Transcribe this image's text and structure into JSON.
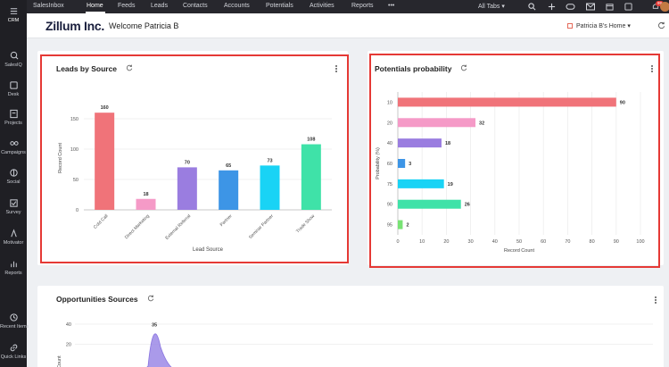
{
  "sidebar": {
    "items": [
      {
        "label": "CRM",
        "icon": "crm-icon"
      },
      {
        "label": "SalesIQ",
        "icon": "salesiq-icon"
      },
      {
        "label": "Desk",
        "icon": "desk-icon"
      },
      {
        "label": "Projects",
        "icon": "projects-icon"
      },
      {
        "label": "Campaigns",
        "icon": "campaigns-icon"
      },
      {
        "label": "Social",
        "icon": "social-icon"
      },
      {
        "label": "Survey",
        "icon": "survey-icon"
      },
      {
        "label": "Motivator",
        "icon": "motivator-icon"
      },
      {
        "label": "Reports",
        "icon": "reports-icon"
      },
      {
        "label": "Recent Items",
        "icon": "recent-items-icon"
      },
      {
        "label": "Quick Links",
        "icon": "quick-links-icon"
      }
    ]
  },
  "nav": {
    "items": [
      "SalesInbox",
      "Home",
      "Feeds",
      "Leads",
      "Contacts",
      "Accounts",
      "Potentials",
      "Activities",
      "Reports"
    ],
    "active": "Home",
    "more": "•••",
    "all_tabs": "All Tabs",
    "notification_count": "99"
  },
  "header": {
    "brand": "Zillum Inc.",
    "welcome": "Welcome Patricia B",
    "home_selector": "Patricia B's Home"
  },
  "leads_card": {
    "title": "Leads by Source",
    "chart_data": {
      "type": "bar",
      "categories": [
        "Cold Call",
        "Direct Marketing",
        "External Referral",
        "Partner",
        "Seminar Partner",
        "Trade Show"
      ],
      "values": [
        160,
        18,
        70,
        65,
        73,
        108
      ],
      "colors": [
        "#f07379",
        "#f59ac7",
        "#9a7de0",
        "#3d95e6",
        "#19d3f5",
        "#3fe2a8"
      ],
      "xlabel": "Lead Source",
      "ylabel": "Record Count",
      "ylim": [
        0,
        200
      ],
      "yticks": [
        0,
        50,
        100,
        150
      ],
      "grid": true
    }
  },
  "potentials_card": {
    "title": "Potentials probability",
    "chart_data": {
      "type": "bar",
      "orientation": "horizontal",
      "categories": [
        "10",
        "20",
        "40",
        "60",
        "75",
        "90",
        "95"
      ],
      "values": [
        90,
        32,
        18,
        3,
        19,
        26,
        2
      ],
      "colors": [
        "#f07379",
        "#f59ac7",
        "#9a7de0",
        "#3d95e6",
        "#19d3f5",
        "#3fe2a8",
        "#78e374"
      ],
      "xlabel": "Record Count",
      "ylabel": "Probability (%)",
      "xlim": [
        0,
        100
      ],
      "xticks": [
        0,
        10,
        20,
        30,
        40,
        50,
        60,
        70,
        80,
        90,
        100
      ],
      "grid": true
    }
  },
  "opportunities_card": {
    "title": "Opportunities Sources",
    "chart_data": {
      "type": "area",
      "ylabel": "d Count",
      "yticks": [
        20,
        40
      ],
      "ylim": [
        0,
        40
      ],
      "peak_value": 35,
      "color": "#9b88e6"
    }
  }
}
